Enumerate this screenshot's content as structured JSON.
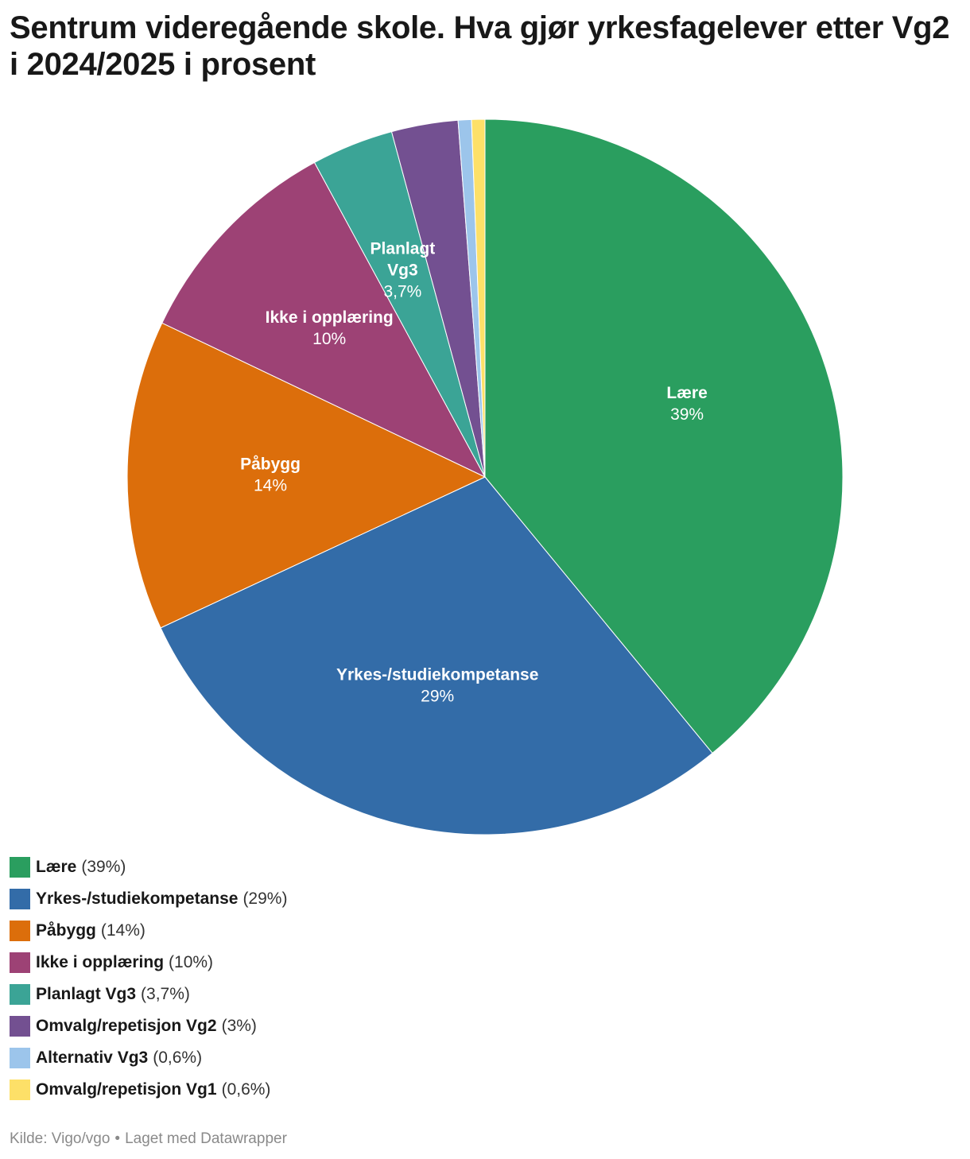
{
  "title": "Sentrum videregående skole. Hva gjør yrkesfagelever etter Vg2 i 2024/2025 i prosent",
  "footer": {
    "source": "Kilde: Vigo/vgo",
    "separator": "•",
    "credit": "Laget med Datawrapper"
  },
  "chart_data": {
    "type": "pie",
    "title": "Sentrum videregående skole. Hva gjør yrkesfagelever etter Vg2 i 2024/2025 i prosent",
    "slices": [
      {
        "name": "Lære",
        "value": 39,
        "label": "39%",
        "color": "#2a9e5f",
        "inside_label": true
      },
      {
        "name": "Yrkes-/studiekompetanse",
        "value": 29,
        "label": "29%",
        "color": "#336ca8",
        "inside_label": true
      },
      {
        "name": "Påbygg",
        "value": 14,
        "label": "14%",
        "color": "#dc6e0b",
        "inside_label": true
      },
      {
        "name": "Ikke i opplæring",
        "value": 10,
        "label": "10%",
        "color": "#9d4275",
        "inside_label": true
      },
      {
        "name": "Planlagt Vg3",
        "value": 3.7,
        "label": "3,7%",
        "color": "#3ba496",
        "inside_label": true
      },
      {
        "name": "Omvalg/repetisjon Vg2",
        "value": 3,
        "label": "3%",
        "color": "#735091",
        "inside_label": false
      },
      {
        "name": "Alternativ Vg3",
        "value": 0.6,
        "label": "0,6%",
        "color": "#9cc5eb",
        "inside_label": false
      },
      {
        "name": "Omvalg/repetisjon Vg1",
        "value": 0.6,
        "label": "0,6%",
        "color": "#fde068",
        "inside_label": false
      }
    ],
    "legend_position": "bottom-left"
  }
}
